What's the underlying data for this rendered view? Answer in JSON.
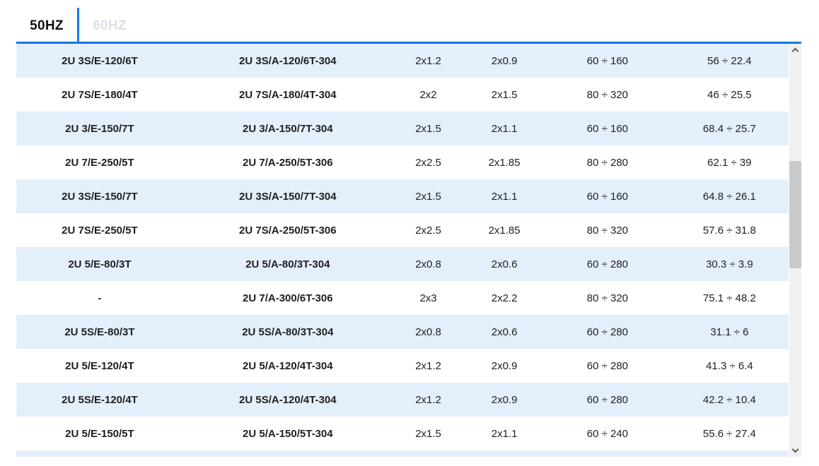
{
  "tabs": [
    {
      "label": "50HZ",
      "active": true
    },
    {
      "label": "60HZ",
      "active": false
    }
  ],
  "table": {
    "rows": [
      [
        "2U 3S/E-120/6T",
        "2U 3S/A-120/6T-304",
        "2x1.2",
        "2x0.9",
        "60 ÷ 160",
        "56 ÷ 22.4"
      ],
      [
        "2U 7S/E-180/4T",
        "2U 7S/A-180/4T-304",
        "2x2",
        "2x1.5",
        "80 ÷ 320",
        "46 ÷ 25.5"
      ],
      [
        "2U 3/E-150/7T",
        "2U 3/A-150/7T-304",
        "2x1.5",
        "2x1.1",
        "60 ÷ 160",
        "68.4 ÷ 25.7"
      ],
      [
        "2U 7/E-250/5T",
        "2U 7/A-250/5T-306",
        "2x2.5",
        "2x1.85",
        "80 ÷ 280",
        "62.1 ÷ 39"
      ],
      [
        "2U 3S/E-150/7T",
        "2U 3S/A-150/7T-304",
        "2x1.5",
        "2x1.1",
        "60 ÷ 160",
        "64.8 ÷ 26.1"
      ],
      [
        "2U 7S/E-250/5T",
        "2U 7S/A-250/5T-306",
        "2x2.5",
        "2x1.85",
        "80 ÷ 320",
        "57.6 ÷ 31.8"
      ],
      [
        "2U 5/E-80/3T",
        "2U 5/A-80/3T-304",
        "2x0.8",
        "2x0.6",
        "60 ÷ 280",
        "30.3 ÷ 3.9"
      ],
      [
        "-",
        "2U 7/A-300/6T-306",
        "2x3",
        "2x2.2",
        "80 ÷ 320",
        "75.1 ÷ 48.2"
      ],
      [
        "2U 5S/E-80/3T",
        "2U 5S/A-80/3T-304",
        "2x0.8",
        "2x0.6",
        "60 ÷ 280",
        "31.1 ÷ 6"
      ],
      [
        "2U 5/E-120/4T",
        "2U 5/A-120/4T-304",
        "2x1.2",
        "2x0.9",
        "60 ÷ 280",
        "41.3 ÷ 6.4"
      ],
      [
        "2U 5S/E-120/4T",
        "2U 5S/A-120/4T-304",
        "2x1.2",
        "2x0.9",
        "60 ÷ 280",
        "42.2 ÷ 10.4"
      ],
      [
        "2U 5/E-150/5T",
        "2U 5/A-150/5T-304",
        "2x1.5",
        "2x1.1",
        "60 ÷ 240",
        "55.6 ÷ 27.4"
      ]
    ]
  },
  "colors": {
    "accent_blue": "#1478e8",
    "row_stripe_blue": "#e4effc",
    "inactive_tab": "#d9dfe6",
    "text": "#1f1f1f",
    "scrollbar_track": "#f1f1f1",
    "scrollbar_thumb": "#c9c9c9"
  }
}
